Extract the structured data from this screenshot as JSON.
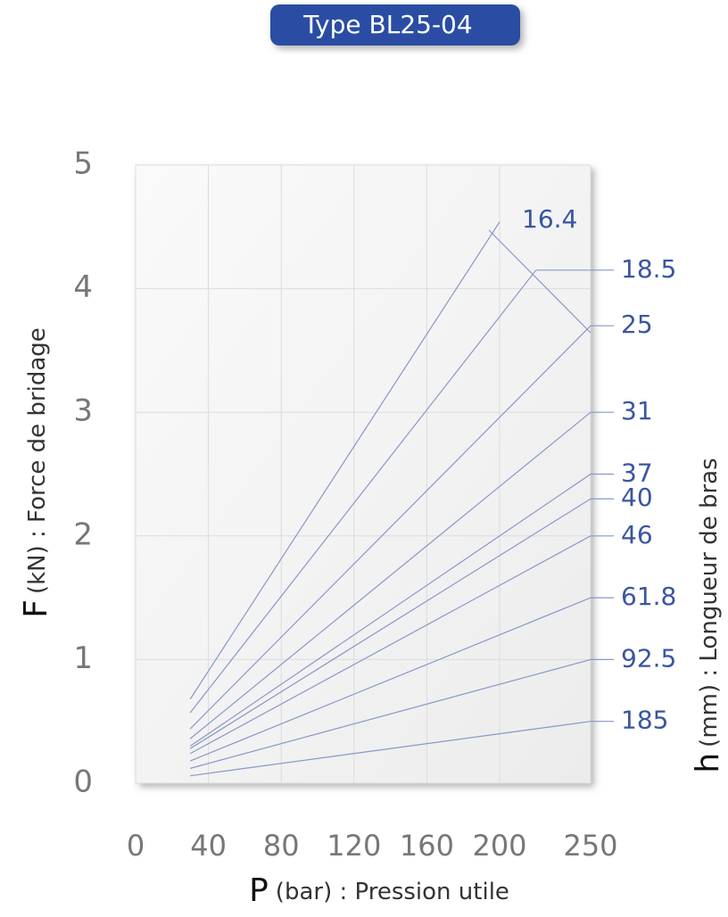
{
  "chart_data": {
    "type": "line",
    "title": "Type BL25-04",
    "x_label_symbol": "P",
    "x_label": "(bar) : Pression utile",
    "y_label_symbol": "F",
    "y_label": "(kN) : Force de bridage",
    "y2_label_symbol": "h",
    "y2_label": "(mm) : Longueur de bras",
    "xlim": [
      0,
      250
    ],
    "xticks": [
      0,
      40,
      80,
      120,
      160,
      200,
      250
    ],
    "ylim": [
      0,
      5
    ],
    "yticks": [
      0,
      1,
      2,
      3,
      4,
      5
    ],
    "grid": true,
    "color": "#8a97c8",
    "series": [
      {
        "name": "16.4",
        "x": [
          30,
          200
        ],
        "values": [
          0.68,
          4.54
        ]
      },
      {
        "name": "18.5",
        "x": [
          30,
          220
        ],
        "values": [
          0.57,
          4.15
        ]
      },
      {
        "name": "25",
        "x": [
          30,
          250
        ],
        "values": [
          0.44,
          3.7
        ]
      },
      {
        "name": "31",
        "x": [
          30,
          250
        ],
        "values": [
          0.36,
          3.0
        ]
      },
      {
        "name": "37",
        "x": [
          30,
          250
        ],
        "values": [
          0.3,
          2.5
        ]
      },
      {
        "name": "40",
        "x": [
          30,
          250
        ],
        "values": [
          0.28,
          2.3
        ]
      },
      {
        "name": "46",
        "x": [
          30,
          250
        ],
        "values": [
          0.24,
          2.0
        ]
      },
      {
        "name": "61.8",
        "x": [
          30,
          250
        ],
        "values": [
          0.18,
          1.5
        ]
      },
      {
        "name": "92.5",
        "x": [
          30,
          250
        ],
        "values": [
          0.12,
          1.0
        ]
      },
      {
        "name": "185",
        "x": [
          30,
          250
        ],
        "values": [
          0.06,
          0.5
        ]
      }
    ]
  }
}
